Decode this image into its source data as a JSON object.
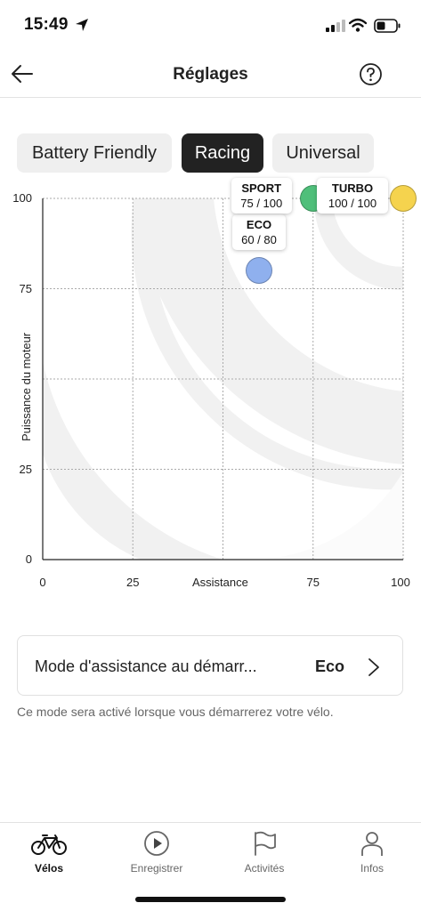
{
  "status_bar": {
    "time": "15:49"
  },
  "header": {
    "title": "Réglages"
  },
  "tabs": [
    {
      "label": "Battery Friendly",
      "active": false
    },
    {
      "label": "Racing",
      "active": true
    },
    {
      "label": "Universal",
      "active": false
    }
  ],
  "chart_data": {
    "type": "scatter",
    "xlabel": "Assistance",
    "ylabel": "Puissance du moteur",
    "xlim": [
      0,
      100
    ],
    "ylim": [
      0,
      100
    ],
    "x_ticks": [
      "0",
      "25",
      "75",
      "100"
    ],
    "y_ticks": [
      "100",
      "75",
      "25",
      "0"
    ],
    "grid": true,
    "points": [
      {
        "name": "ECO",
        "x": 60,
        "y": 80,
        "label": "60 / 80",
        "color": "#8fb0ee"
      },
      {
        "name": "SPORT",
        "x": 75,
        "y": 100,
        "label": "75 / 100",
        "color": "#4fbf7a"
      },
      {
        "name": "TURBO",
        "x": 100,
        "y": 100,
        "label": "100 / 100",
        "color": "#f5d34e"
      }
    ]
  },
  "setting": {
    "label": "Mode d'assistance au démarr...",
    "value": "Eco",
    "help": "Ce mode sera activé lorsque vous démarrerez votre vélo."
  },
  "nav": [
    {
      "label": "Vélos",
      "icon": "bike-icon",
      "active": true
    },
    {
      "label": "Enregistrer",
      "icon": "play-icon",
      "active": false
    },
    {
      "label": "Activités",
      "icon": "flag-icon",
      "active": false
    },
    {
      "label": "Infos",
      "icon": "person-icon",
      "active": false
    }
  ]
}
